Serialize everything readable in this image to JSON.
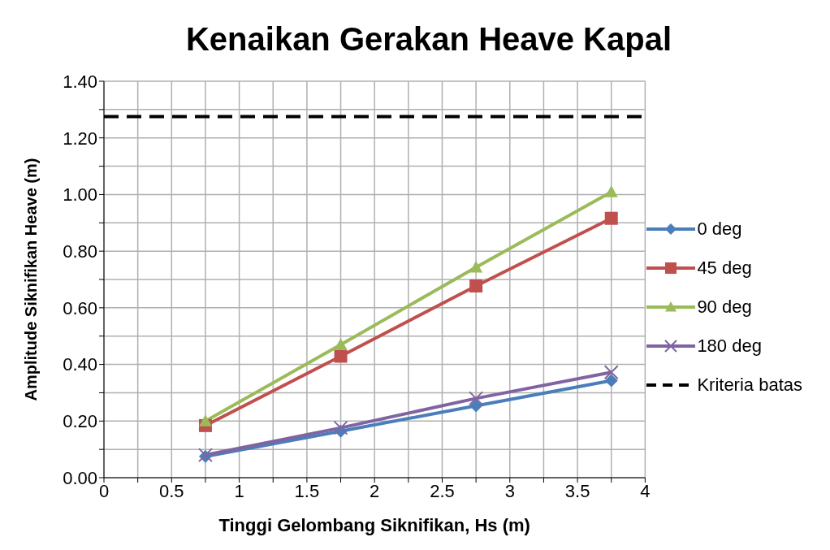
{
  "chart_data": {
    "type": "line",
    "title": "Kenaikan Gerakan Heave Kapal",
    "xlabel": "Tinggi Gelombang Siknifikan, Hs (m)",
    "ylabel": "Amplitude Siknifikan Heave (m)",
    "x": [
      0.75,
      1.75,
      2.75,
      3.75
    ],
    "series": [
      {
        "name": "0 deg",
        "color": "#4a7ebb",
        "marker": "diamond",
        "values": [
          0.075,
          0.164,
          0.254,
          0.343
        ]
      },
      {
        "name": "45 deg",
        "color": "#c0504d",
        "marker": "square",
        "values": [
          0.184,
          0.429,
          0.677,
          0.916
        ]
      },
      {
        "name": "90 deg",
        "color": "#9bbb59",
        "marker": "triangle",
        "values": [
          0.2,
          0.47,
          0.743,
          1.009
        ]
      },
      {
        "name": "180 deg",
        "color": "#8064a2",
        "marker": "cross",
        "values": [
          0.08,
          0.176,
          0.28,
          0.372
        ]
      },
      {
        "name": "Kriteria batas",
        "color": "#000000",
        "marker": "none",
        "line_style": "dashed",
        "x": [
          0,
          4
        ],
        "values": [
          1.275,
          1.275
        ]
      }
    ],
    "xlim": [
      0,
      4
    ],
    "xticks": [
      0,
      {
        "value": 0.25,
        "label": null
      },
      0.5,
      {
        "value": 0.75,
        "label": null
      },
      1,
      {
        "value": 1.25,
        "label": null
      },
      1.5,
      {
        "value": 1.75,
        "label": null
      },
      2,
      {
        "value": 2.25,
        "label": null
      },
      2.5,
      {
        "value": 2.75,
        "label": null
      },
      3,
      {
        "value": 3.25,
        "label": null
      },
      3.5,
      {
        "value": 3.75,
        "label": null
      },
      4
    ],
    "ylim": [
      0,
      1.4
    ],
    "yticks": [
      {
        "value": 0,
        "label": "0.00"
      },
      {
        "value": 0.1,
        "label": null
      },
      {
        "value": 0.2,
        "label": "0.20"
      },
      {
        "value": 0.3,
        "label": null
      },
      {
        "value": 0.4,
        "label": "0.40"
      },
      {
        "value": 0.5,
        "label": null
      },
      {
        "value": 0.6,
        "label": "0.60"
      },
      {
        "value": 0.7,
        "label": null
      },
      {
        "value": 0.8,
        "label": "0.80"
      },
      {
        "value": 0.9,
        "label": null
      },
      {
        "value": 1.0,
        "label": "1.00"
      },
      {
        "value": 1.1,
        "label": null
      },
      {
        "value": 1.2,
        "label": "1.20"
      },
      {
        "value": 1.3,
        "label": null
      },
      {
        "value": 1.4,
        "label": "1.40"
      }
    ],
    "grid": true,
    "legend": "right",
    "line_style": "solid"
  }
}
